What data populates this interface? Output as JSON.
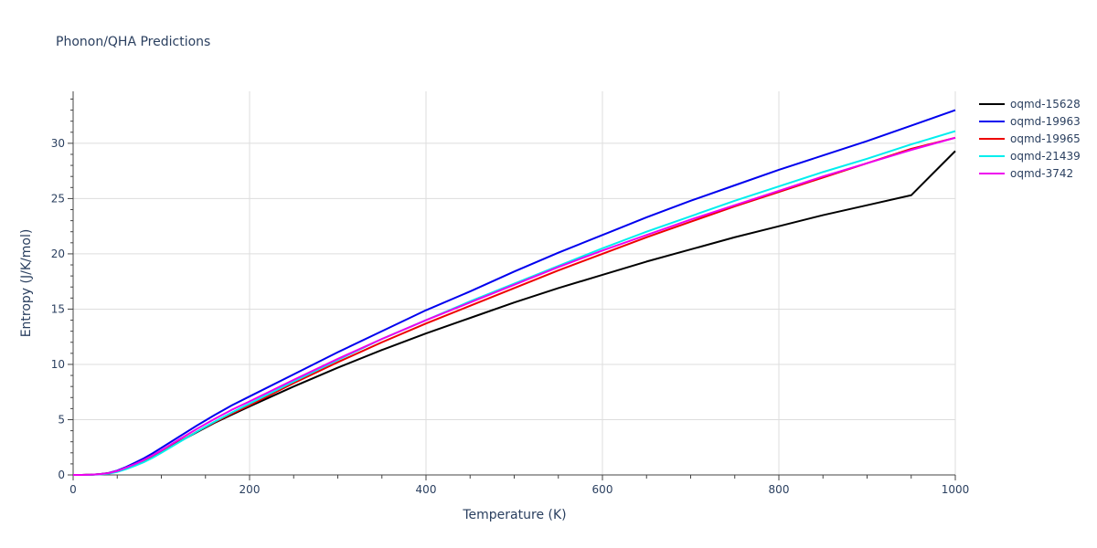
{
  "chart_data": {
    "type": "line",
    "title": "Phonon/QHA Predictions",
    "xlabel": "Temperature (K)",
    "ylabel": "Entropy (J/K/mol)",
    "xlim": [
      0,
      1000
    ],
    "ylim": [
      0,
      34.7
    ],
    "xticks": [
      0,
      200,
      400,
      600,
      800,
      1000
    ],
    "yticks": [
      0,
      5,
      10,
      15,
      20,
      25,
      30
    ],
    "grid": true,
    "legend_position": "right",
    "series": [
      {
        "name": "oqmd-15628",
        "color": "#000000",
        "x": [
          0,
          10,
          20,
          30,
          40,
          50,
          60,
          70,
          80,
          90,
          100,
          120,
          140,
          160,
          180,
          200,
          250,
          300,
          350,
          400,
          450,
          500,
          550,
          600,
          650,
          700,
          750,
          800,
          850,
          900,
          950,
          1000
        ],
        "y": [
          0,
          0,
          0.02,
          0.06,
          0.15,
          0.35,
          0.65,
          0.95,
          1.3,
          1.7,
          2.15,
          3.0,
          3.85,
          4.7,
          5.45,
          6.2,
          8.0,
          9.7,
          11.3,
          12.8,
          14.2,
          15.6,
          16.9,
          18.1,
          19.3,
          20.4,
          21.5,
          22.5,
          23.5,
          24.4,
          25.3,
          29.3
        ]
      },
      {
        "name": "oqmd-19963",
        "color": "#0000ee",
        "x": [
          0,
          10,
          20,
          30,
          40,
          50,
          60,
          70,
          80,
          90,
          100,
          120,
          140,
          160,
          180,
          200,
          250,
          300,
          350,
          400,
          450,
          500,
          550,
          600,
          650,
          700,
          750,
          800,
          850,
          900,
          950,
          1000
        ],
        "y": [
          0,
          0,
          0.02,
          0.07,
          0.18,
          0.4,
          0.72,
          1.1,
          1.5,
          1.95,
          2.45,
          3.45,
          4.45,
          5.4,
          6.3,
          7.1,
          9.1,
          11.1,
          13.0,
          14.9,
          16.6,
          18.4,
          20.1,
          21.7,
          23.3,
          24.8,
          26.2,
          27.6,
          28.9,
          30.2,
          31.6,
          33.0
        ]
      },
      {
        "name": "oqmd-19965",
        "color": "#ee0000",
        "x": [
          0,
          10,
          20,
          30,
          40,
          50,
          60,
          70,
          80,
          90,
          100,
          120,
          140,
          160,
          180,
          200,
          250,
          300,
          350,
          400,
          450,
          500,
          550,
          600,
          650,
          700,
          750,
          800,
          850,
          900,
          950,
          1000
        ],
        "y": [
          0,
          0,
          0.02,
          0.06,
          0.15,
          0.33,
          0.62,
          0.92,
          1.25,
          1.65,
          2.1,
          3.0,
          3.9,
          4.75,
          5.55,
          6.3,
          8.3,
          10.2,
          12.0,
          13.7,
          15.3,
          16.9,
          18.5,
          20.0,
          21.5,
          22.9,
          24.3,
          25.6,
          26.9,
          28.2,
          29.5,
          30.5
        ]
      },
      {
        "name": "oqmd-21439",
        "color": "#00eeee",
        "x": [
          0,
          10,
          20,
          30,
          40,
          50,
          60,
          70,
          80,
          90,
          100,
          120,
          140,
          160,
          180,
          200,
          250,
          300,
          350,
          400,
          450,
          500,
          550,
          600,
          650,
          700,
          750,
          800,
          850,
          900,
          950,
          1000
        ],
        "y": [
          0,
          0,
          0.01,
          0.04,
          0.11,
          0.27,
          0.52,
          0.82,
          1.15,
          1.55,
          2.0,
          2.95,
          3.9,
          4.8,
          5.65,
          6.45,
          8.45,
          10.4,
          12.3,
          14.0,
          15.7,
          17.3,
          18.9,
          20.5,
          22.0,
          23.4,
          24.8,
          26.1,
          27.4,
          28.6,
          29.9,
          31.1
        ]
      },
      {
        "name": "oqmd-3742",
        "color": "#ee00ee",
        "x": [
          0,
          10,
          20,
          30,
          40,
          50,
          60,
          70,
          80,
          90,
          100,
          120,
          140,
          160,
          180,
          200,
          250,
          300,
          350,
          400,
          450,
          500,
          550,
          600,
          650,
          700,
          750,
          800,
          850,
          900,
          950,
          1000
        ],
        "y": [
          0,
          0,
          0.02,
          0.06,
          0.16,
          0.36,
          0.66,
          0.98,
          1.35,
          1.77,
          2.22,
          3.2,
          4.15,
          5.05,
          5.9,
          6.65,
          8.6,
          10.5,
          12.3,
          14.0,
          15.6,
          17.2,
          18.8,
          20.3,
          21.7,
          23.1,
          24.4,
          25.7,
          27.0,
          28.2,
          29.4,
          30.5
        ]
      }
    ]
  }
}
